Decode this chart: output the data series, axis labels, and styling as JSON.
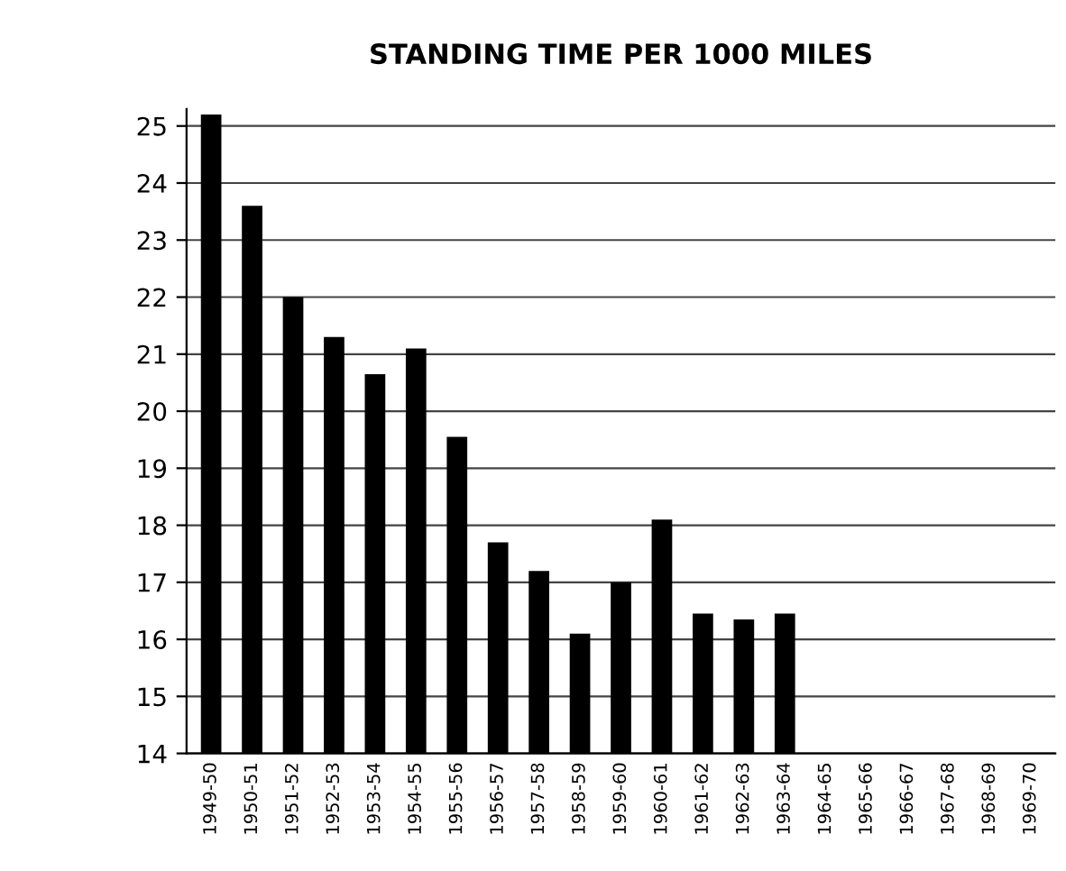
{
  "chart_data": {
    "type": "bar",
    "title": "STANDING TIME PER 1000 MILES",
    "categories": [
      "1949-50",
      "1950-51",
      "1951-52",
      "1952-53",
      "1953-54",
      "1954-55",
      "1955-56",
      "1956-57",
      "1957-58",
      "1958-59",
      "1959-60",
      "1960-61",
      "1961-62",
      "1962-63",
      "1963-64",
      "1964-65",
      "1965-66",
      "1966-67",
      "1967-68",
      "1968-69",
      "1969-70"
    ],
    "values": [
      25.2,
      23.6,
      22.0,
      21.3,
      20.65,
      21.1,
      19.55,
      17.7,
      17.2,
      16.1,
      17.0,
      18.1,
      16.45,
      16.35,
      16.45,
      null,
      null,
      null,
      null,
      null,
      null
    ],
    "color": "#000000",
    "ylim": [
      14,
      25.3
    ],
    "yticks": [
      14,
      15,
      16,
      17,
      18,
      19,
      20,
      21,
      22,
      23,
      24,
      25
    ],
    "grid": "y"
  }
}
